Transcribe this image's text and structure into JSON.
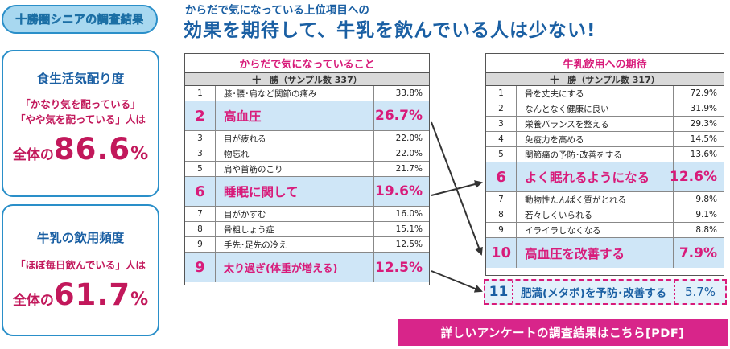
{
  "tag": "十勝圏シニアの調査結果",
  "card1": {
    "title": "食生活気配り度",
    "line1": "「かなり気を配っている」",
    "line2": "「やや気を配っている」人は",
    "total_prefix": "全体の",
    "total_value": "86.6",
    "total_unit": "%"
  },
  "card2": {
    "title": "牛乳の飲用頻度",
    "line1": "「ほぼ毎日飲んでいる」人は",
    "total_prefix": "全体の",
    "total_value": "61.7",
    "total_unit": "%"
  },
  "subhead": "からだで気になっている上位項目への",
  "headline": "効果を期待して、牛乳を飲んでいる人は少ない!",
  "left_table": {
    "title": "からだで気になっていること",
    "subtitle": "十　勝（サンプル数 337）",
    "rows": [
      {
        "rank": "1",
        "label": "膝･腰･肩など関節の痛み",
        "value": "33.8%"
      },
      {
        "rank": "2",
        "label": "高血圧",
        "value": "26.7%"
      },
      {
        "rank": "3",
        "label": "目が疲れる",
        "value": "22.0%"
      },
      {
        "rank": "3",
        "label": "物忘れ",
        "value": "22.0%"
      },
      {
        "rank": "5",
        "label": "肩や首筋のこり",
        "value": "21.7%"
      },
      {
        "rank": "6",
        "label": "睡眠に関して",
        "value": "19.6%"
      },
      {
        "rank": "7",
        "label": "目がかすむ",
        "value": "16.0%"
      },
      {
        "rank": "8",
        "label": "骨粗しょう症",
        "value": "15.1%"
      },
      {
        "rank": "9",
        "label": "手先･足先の冷え",
        "value": "12.5%"
      },
      {
        "rank": "9",
        "label": "太り過ぎ(体重が増える)",
        "value": "12.5%"
      }
    ]
  },
  "right_table": {
    "title": "牛乳飲用への期待",
    "subtitle": "十　勝（サンプル数 317）",
    "rows": [
      {
        "rank": "1",
        "label": "骨を丈夫にする",
        "value": "72.9%"
      },
      {
        "rank": "2",
        "label": "なんとなく健康に良い",
        "value": "31.9%"
      },
      {
        "rank": "3",
        "label": "栄養バランスを整える",
        "value": "29.3%"
      },
      {
        "rank": "4",
        "label": "免疫力を高める",
        "value": "14.5%"
      },
      {
        "rank": "5",
        "label": "関節痛の予防･改善をする",
        "value": "13.6%"
      },
      {
        "rank": "6",
        "label": "よく眠れるようになる",
        "value": "12.6%"
      },
      {
        "rank": "7",
        "label": "動物性たんぱく質がとれる",
        "value": "9.8%"
      },
      {
        "rank": "8",
        "label": "若々しくいられる",
        "value": "9.1%"
      },
      {
        "rank": "9",
        "label": "イライラしなくなる",
        "value": "8.8%"
      },
      {
        "rank": "10",
        "label": "高血圧を改善する",
        "value": "7.9%"
      }
    ],
    "extra": {
      "rank": "11",
      "label": "肥満(メタボ)を予防･改善する",
      "value": "5.7%"
    }
  },
  "pdf_button": "詳しいアンケートの調査結果はこちら[PDF]",
  "colors": {
    "blue": "#1a5fa3",
    "pink": "#d81b7a",
    "highlight": "#cfe6f7"
  }
}
